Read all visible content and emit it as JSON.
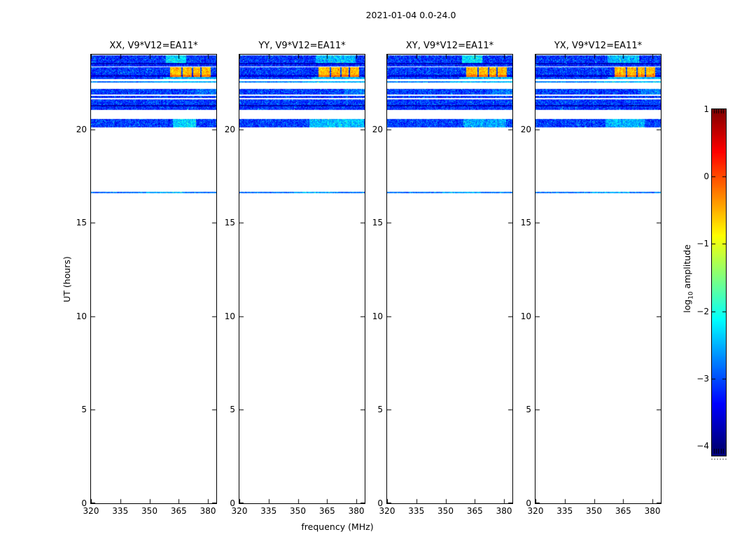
{
  "figure": {
    "title": "2021-01-04 0.0-24.0",
    "background": "#ffffff",
    "text_color": "#000000"
  },
  "chart_data": {
    "type": "heatmap",
    "title": "2021-01-04 0.0-24.0",
    "xlabel": "frequency (MHz)",
    "ylabel": "UT (hours)",
    "x_range_mhz": [
      320,
      384.3
    ],
    "y_range_hours": [
      0,
      24
    ],
    "x_ticks": [
      320,
      335,
      350,
      365,
      380
    ],
    "y_ticks": [
      0,
      5,
      10,
      15,
      20
    ],
    "grid": false,
    "colormap": "jet",
    "background_value": "blank-white (no data)",
    "panels": [
      {
        "title": "XX, V9*V12=EA11*",
        "seed": 101
      },
      {
        "title": "YY, V9*V12=EA11*",
        "seed": 202
      },
      {
        "title": "XY, V9*V12=EA11*",
        "seed": 303
      },
      {
        "title": "YX, V9*V12=EA11*",
        "seed": 404
      }
    ],
    "colorbar": {
      "label_prefix": "log",
      "label_sub": "10",
      "label_suffix": " amplitude",
      "vmin": -4,
      "vmax": 1,
      "ticks": [
        1,
        0,
        -1,
        -2,
        -3,
        -4
      ],
      "tick_labels": [
        "1",
        "0",
        "−1",
        "−2",
        "−3",
        "−4"
      ]
    },
    "bands": [
      {
        "ut0": 23.55,
        "ut1": 23.98,
        "level": -3.15,
        "amp": 0.45,
        "speckle": 0.04,
        "patches": [
          {
            "f0": 358.5,
            "f1": 369.0,
            "level": -2.3,
            "amp": 0.4
          }
        ],
        "panel_patches": {
          "1": [
            {
              "f0": 359.0,
              "f1": 379.5,
              "level": -2.5,
              "amp": 0.45
            }
          ],
          "3": [
            {
              "f0": 357.0,
              "f1": 373.0,
              "level": -2.5,
              "amp": 0.45
            }
          ]
        }
      },
      {
        "ut0": 23.48,
        "ut1": 23.55,
        "level": -3.7,
        "amp": 0.25
      },
      {
        "ut0": 23.38,
        "ut1": 23.48,
        "level": -3.15,
        "amp": 0.4
      },
      {
        "ut0": 22.92,
        "ut1": 23.32,
        "level": -3.1,
        "amp": 0.45,
        "patches": [
          {
            "f0": 360.7,
            "f1": 366.2,
            "level": -0.55,
            "amp": 0.3
          },
          {
            "f0": 366.9,
            "f1": 371.7,
            "level": -0.55,
            "amp": 0.3
          },
          {
            "f0": 372.3,
            "f1": 376.0,
            "level": -0.55,
            "amp": 0.3
          },
          {
            "f0": 376.7,
            "f1": 381.3,
            "level": -0.55,
            "amp": 0.3
          }
        ]
      },
      {
        "ut0": 22.8,
        "ut1": 22.92,
        "level": -3.55,
        "amp": 0.3,
        "patches": [
          {
            "f0": 360.7,
            "f1": 366.2,
            "level": -0.2,
            "amp": 0.2
          },
          {
            "f0": 366.9,
            "f1": 371.7,
            "level": -0.2,
            "amp": 0.2
          },
          {
            "f0": 372.3,
            "f1": 376.0,
            "level": -0.2,
            "amp": 0.2
          },
          {
            "f0": 376.7,
            "f1": 381.3,
            "level": -0.2,
            "amp": 0.2
          }
        ]
      },
      {
        "ut0": 22.69,
        "ut1": 22.8,
        "level": -3.05,
        "amp": 0.4,
        "patches": [
          {
            "f0": 357.0,
            "f1": 384.3,
            "level": -2.5,
            "amp": 0.35
          }
        ]
      },
      {
        "ut0": 22.5,
        "ut1": 22.58,
        "level": -2.75,
        "amp": 0.3,
        "patches": [
          {
            "f0": 352.0,
            "f1": 384.3,
            "level": -2.5,
            "amp": 0.3
          }
        ]
      },
      {
        "ut0": 21.87,
        "ut1": 22.18,
        "level": -3.1,
        "amp": 0.45,
        "patches": [
          {
            "f0": 374.0,
            "f1": 384.3,
            "level": -2.8,
            "amp": 0.4
          }
        ]
      },
      {
        "ut0": 21.68,
        "ut1": 21.79,
        "level": -3.15,
        "amp": 0.4
      },
      {
        "ut0": 21.32,
        "ut1": 21.6,
        "level": -3.1,
        "amp": 0.45
      },
      {
        "ut0": 21.22,
        "ut1": 21.32,
        "level": -3.75,
        "amp": 0.2
      },
      {
        "ut0": 21.06,
        "ut1": 21.22,
        "level": -3.15,
        "amp": 0.4
      },
      {
        "ut0": 20.12,
        "ut1": 20.56,
        "level": -3.1,
        "amp": 0.45,
        "patches": [
          {
            "f0": 362.0,
            "f1": 374.0,
            "level": -2.35,
            "amp": 0.4
          }
        ],
        "panel_patches": {
          "1": [
            {
              "f0": 356.0,
              "f1": 384.0,
              "level": -2.45,
              "amp": 0.4
            }
          ],
          "2": [
            {
              "f0": 359.0,
              "f1": 381.0,
              "level": -2.6,
              "amp": 0.45
            }
          ],
          "3": [
            {
              "f0": 356.0,
              "f1": 376.0,
              "level": -2.5,
              "amp": 0.4
            }
          ]
        }
      },
      {
        "ut0": 16.6,
        "ut1": 16.68,
        "level": -2.85,
        "amp": 0.3,
        "patches": [
          {
            "f0": 348.0,
            "f1": 368.0,
            "level": -2.55,
            "amp": 0.3
          }
        ]
      }
    ]
  }
}
